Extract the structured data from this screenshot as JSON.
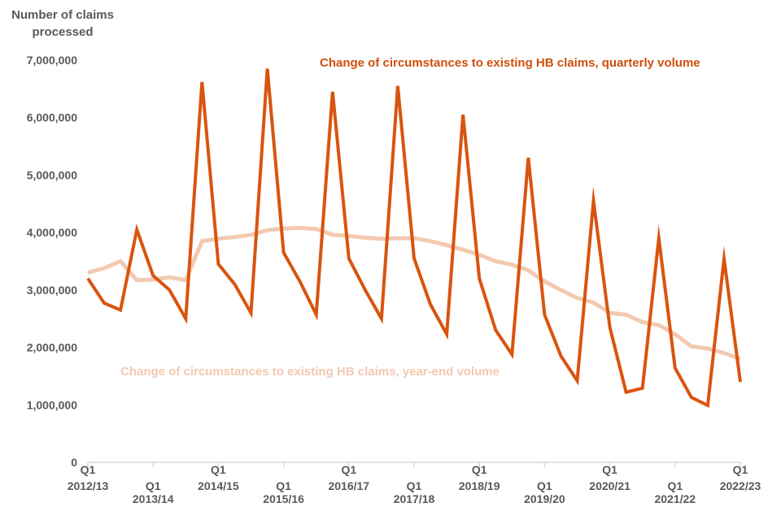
{
  "chart_data": {
    "type": "line",
    "ylabel": "Number of claims processed",
    "ylim": [
      0,
      7000000
    ],
    "y_ticks": [
      {
        "value": 0,
        "label": "0"
      },
      {
        "value": 1000000,
        "label": "1,000,000"
      },
      {
        "value": 2000000,
        "label": "2,000,000"
      },
      {
        "value": 3000000,
        "label": "3,000,000"
      },
      {
        "value": 4000000,
        "label": "4,000,000"
      },
      {
        "value": 5000000,
        "label": "5,000,000"
      },
      {
        "value": 6000000,
        "label": "6,000,000"
      },
      {
        "value": 7000000,
        "label": "7,000,000"
      }
    ],
    "x_ticks": [
      {
        "index": 0,
        "quarter": "Q1",
        "year": "2012/13"
      },
      {
        "index": 4,
        "quarter": "Q1",
        "year": "2013/14"
      },
      {
        "index": 8,
        "quarter": "Q1",
        "year": "2014/15"
      },
      {
        "index": 12,
        "quarter": "Q1",
        "year": "2015/16"
      },
      {
        "index": 16,
        "quarter": "Q1",
        "year": "2016/17"
      },
      {
        "index": 20,
        "quarter": "Q1",
        "year": "2017/18"
      },
      {
        "index": 24,
        "quarter": "Q1",
        "year": "2018/19"
      },
      {
        "index": 28,
        "quarter": "Q1",
        "year": "2019/20"
      },
      {
        "index": 32,
        "quarter": "Q1",
        "year": "2020/21"
      },
      {
        "index": 36,
        "quarter": "Q1",
        "year": "2021/22"
      },
      {
        "index": 40,
        "quarter": "Q1",
        "year": "2022/23"
      }
    ],
    "series": [
      {
        "name": "Change of circumstances to existing HB claims, quarterly volume",
        "color": "#d9540f",
        "values": [
          3200000,
          2770000,
          2650000,
          4050000,
          3250000,
          3000000,
          2500000,
          6620000,
          3450000,
          3100000,
          2600000,
          6850000,
          3650000,
          3150000,
          2570000,
          6450000,
          3550000,
          3000000,
          2500000,
          6550000,
          3550000,
          2750000,
          2230000,
          6050000,
          3200000,
          2300000,
          1880000,
          5300000,
          2570000,
          1850000,
          1420000,
          4550000,
          2350000,
          1220000,
          1290000,
          3900000,
          1640000,
          1130000,
          990000,
          3540000,
          1400000
        ]
      },
      {
        "name": "Change of circumstances to existing HB claims, year-end volume",
        "color": "#f3c9b0",
        "values": [
          3300000,
          3380000,
          3500000,
          3170000,
          3180000,
          3220000,
          3170000,
          3850000,
          3890000,
          3920000,
          3960000,
          4040000,
          4070000,
          4080000,
          4060000,
          3960000,
          3940000,
          3910000,
          3890000,
          3900000,
          3900000,
          3850000,
          3780000,
          3700000,
          3610000,
          3500000,
          3440000,
          3340000,
          3150000,
          3000000,
          2860000,
          2780000,
          2600000,
          2570000,
          2440000,
          2390000,
          2230000,
          2020000,
          1980000,
          1900000,
          1800000
        ]
      }
    ],
    "annotations": [
      {
        "text": "Change of circumstances to existing HB claims, quarterly volume",
        "series": 0
      },
      {
        "text": "Change of circumstances to existing HB claims, year-end volume",
        "series": 1
      }
    ]
  }
}
